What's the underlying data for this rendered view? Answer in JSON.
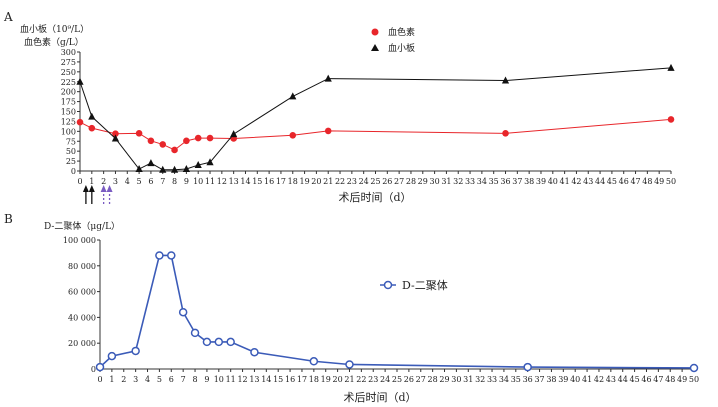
{
  "chart_data": [
    {
      "panel": "A",
      "type": "line",
      "ylabel_lines": [
        "血小板（10⁹/L）",
        "血色素（g/L）"
      ],
      "xlabel": "术后时间（d）",
      "ylim": [
        0,
        300
      ],
      "yticks": [
        0,
        25,
        50,
        75,
        100,
        125,
        150,
        175,
        200,
        225,
        250,
        275,
        300
      ],
      "xticks": [
        0,
        1,
        2,
        3,
        4,
        5,
        6,
        7,
        8,
        9,
        10,
        11,
        12,
        13,
        14,
        15,
        16,
        17,
        18,
        19,
        20,
        21,
        22,
        23,
        24,
        25,
        26,
        27,
        28,
        29,
        30,
        31,
        32,
        33,
        34,
        35,
        36,
        37,
        38,
        39,
        40,
        41,
        42,
        43,
        44,
        45,
        46,
        47,
        48,
        49,
        50
      ],
      "legend_position": "top-center",
      "series": [
        {
          "name": "血色素",
          "color": "#e8262b",
          "marker": "circle",
          "x": [
            0,
            1,
            3,
            5,
            6,
            7,
            8,
            9,
            10,
            11,
            13,
            18,
            21,
            36,
            50
          ],
          "y": [
            123,
            108,
            94,
            95,
            76,
            67,
            53,
            76,
            83,
            83,
            82,
            90,
            101,
            95,
            130
          ]
        },
        {
          "name": "血小板",
          "color": "#111111",
          "marker": "triangle",
          "x": [
            0,
            1,
            3,
            5,
            6,
            7,
            8,
            9,
            10,
            11,
            13,
            18,
            21,
            36,
            50
          ],
          "y": [
            225,
            137,
            82,
            5,
            20,
            3,
            3,
            5,
            15,
            22,
            93,
            188,
            233,
            228,
            260
          ]
        }
      ],
      "annotations": {
        "solid_arrows_x": [
          0.5,
          1
        ],
        "solid_arrow_color": "#111111",
        "dashed_arrows_x": [
          2,
          2.5
        ],
        "dashed_arrow_color": "#7a5cc2"
      }
    },
    {
      "panel": "B",
      "type": "line",
      "ylabel": "D-二聚体（μg/L）",
      "xlabel": "术后时间（d）",
      "ylim": [
        0,
        100000
      ],
      "yticks": [
        0,
        20000,
        40000,
        60000,
        80000,
        100000
      ],
      "ytick_labels": [
        "0",
        "20 000",
        "40 000",
        "60 000",
        "80 000",
        "100 000"
      ],
      "xticks": [
        0,
        1,
        2,
        3,
        4,
        5,
        6,
        7,
        8,
        9,
        10,
        11,
        12,
        13,
        14,
        15,
        16,
        17,
        18,
        19,
        20,
        21,
        22,
        23,
        24,
        25,
        26,
        27,
        28,
        29,
        30,
        31,
        32,
        33,
        34,
        35,
        36,
        37,
        38,
        39,
        40,
        41,
        42,
        43,
        44,
        45,
        46,
        47,
        48,
        49,
        50
      ],
      "legend_position": "center-right",
      "series": [
        {
          "name": "D-二聚体",
          "color": "#3b5bb8",
          "marker": "circle-open",
          "x": [
            0,
            1,
            3,
            5,
            6,
            7,
            8,
            9,
            10,
            11,
            13,
            18,
            21,
            36,
            50
          ],
          "y": [
            1500,
            10000,
            14000,
            88000,
            88000,
            44000,
            28000,
            21000,
            21000,
            21000,
            13000,
            6000,
            3500,
            1500,
            800
          ]
        }
      ]
    }
  ],
  "panel_labels": [
    "A",
    "B"
  ],
  "legend_a": {
    "hemoglobin_label": "血色素",
    "platelet_label": "血小板"
  },
  "legend_b": {
    "ddimer_label": "D-二聚体"
  }
}
